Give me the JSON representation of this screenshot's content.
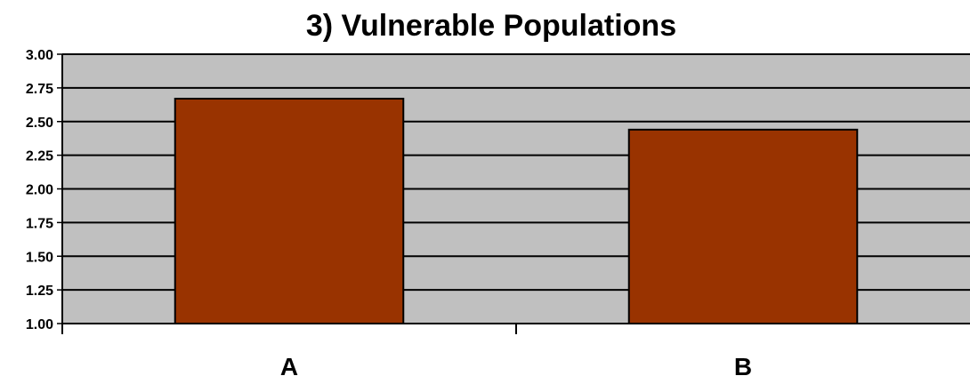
{
  "chart_data": {
    "type": "bar",
    "title": "3) Vulnerable Populations",
    "categories": [
      "A",
      "B"
    ],
    "values": [
      2.67,
      2.44
    ],
    "ylim": [
      1.0,
      3.0
    ],
    "yticks": [
      "1.00",
      "1.25",
      "1.50",
      "1.75",
      "2.00",
      "2.25",
      "2.50",
      "2.75",
      "3.00"
    ],
    "xlabel": "",
    "ylabel": "",
    "grid": true,
    "colors": {
      "bar": "#993300",
      "plot_background": "#C0C0C0",
      "gridline": "#000000"
    }
  }
}
